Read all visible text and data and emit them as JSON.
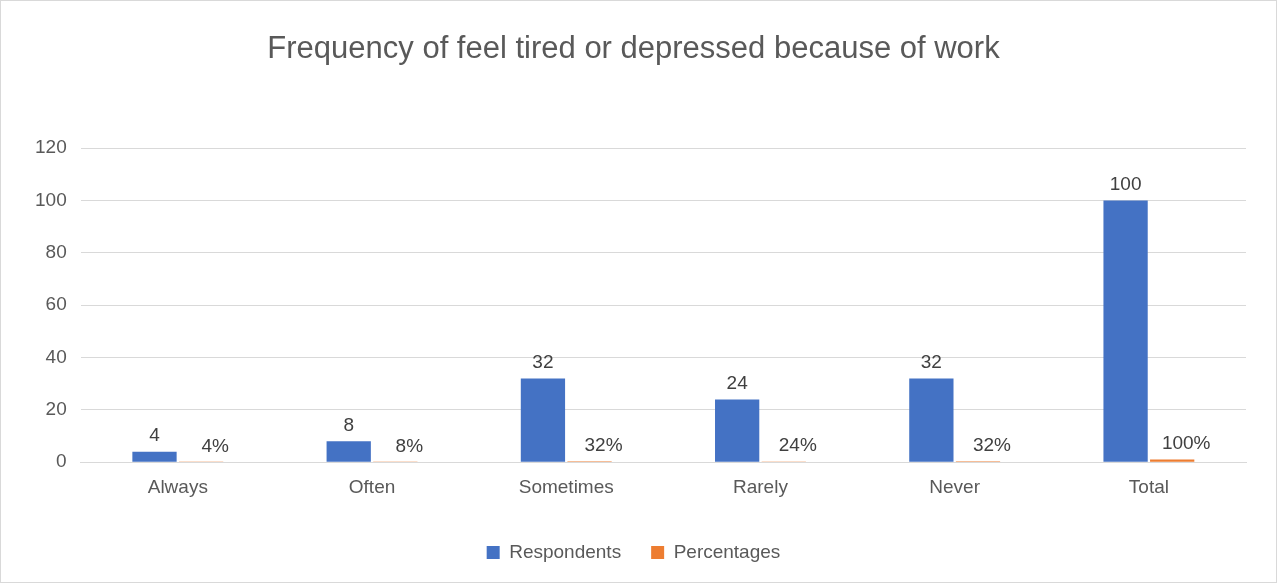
{
  "chart_data": {
    "type": "bar",
    "title": "Frequency of feel tired or depressed because of work",
    "categories": [
      "Always",
      "Often",
      "Sometimes",
      "Rarely",
      "Never",
      "Total"
    ],
    "series": [
      {
        "name": "Respondents",
        "color": "#4472c4",
        "values": [
          4,
          8,
          32,
          24,
          32,
          100
        ],
        "value_labels": [
          "4",
          "8",
          "32",
          "24",
          "32",
          "100"
        ]
      },
      {
        "name": "Percentages",
        "color": "#ed7d31",
        "values": [
          0.04,
          0.08,
          0.32,
          0.24,
          0.32,
          1
        ],
        "value_labels": [
          "4%",
          "8%",
          "32%",
          "24%",
          "32%",
          "100%"
        ]
      }
    ],
    "ylim": [
      0,
      120
    ],
    "yticks": [
      0,
      20,
      40,
      60,
      80,
      100,
      120
    ],
    "grid": "y",
    "legend": "bottom"
  }
}
